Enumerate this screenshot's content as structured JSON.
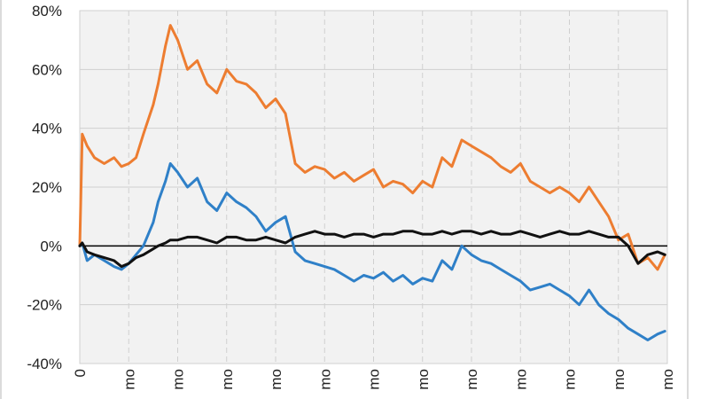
{
  "chart_data": {
    "type": "line",
    "title": "",
    "xlabel": "",
    "ylabel": "",
    "x_tick_labels": [
      "0",
      "mo",
      "mo",
      "mo",
      "mo",
      "mo",
      "mo",
      "mo",
      "mo",
      "mo",
      "mo",
      "mo",
      "mo"
    ],
    "x_range": [
      0,
      12
    ],
    "y_tick_labels": [
      "80%",
      "60%",
      "40%",
      "20%",
      "0%",
      "-20%",
      "-40%"
    ],
    "ylim": [
      -40,
      80
    ],
    "y_unit": "%",
    "grid": true,
    "legend": "none",
    "colors": {
      "background": "#ffffff",
      "plot_background": "#f2f2f2",
      "grid": "#d0d0d0",
      "zero_line": "#000000",
      "series_orange": "#ed7d31",
      "series_blue": "#2f80c8",
      "series_black": "#111111"
    },
    "series": [
      {
        "color": "#ed7d31",
        "x": [
          0,
          0.05,
          0.15,
          0.3,
          0.5,
          0.7,
          0.85,
          1.0,
          1.15,
          1.3,
          1.5,
          1.6,
          1.75,
          1.85,
          2.0,
          2.2,
          2.4,
          2.6,
          2.8,
          3.0,
          3.2,
          3.4,
          3.6,
          3.8,
          4.0,
          4.2,
          4.4,
          4.6,
          4.8,
          5.0,
          5.2,
          5.4,
          5.6,
          5.8,
          6.0,
          6.2,
          6.4,
          6.6,
          6.8,
          7.0,
          7.2,
          7.4,
          7.6,
          7.8,
          8.0,
          8.2,
          8.4,
          8.6,
          8.8,
          9.0,
          9.2,
          9.4,
          9.6,
          9.8,
          10.0,
          10.2,
          10.4,
          10.6,
          10.8,
          11.0,
          11.2,
          11.4,
          11.6,
          11.8,
          11.95
        ],
        "y": [
          0,
          38,
          34,
          30,
          28,
          30,
          27,
          28,
          30,
          38,
          48,
          55,
          68,
          75,
          70,
          60,
          63,
          55,
          52,
          60,
          56,
          55,
          52,
          47,
          50,
          45,
          28,
          25,
          27,
          26,
          23,
          25,
          22,
          24,
          26,
          20,
          22,
          21,
          18,
          22,
          20,
          30,
          27,
          36,
          34,
          32,
          30,
          27,
          25,
          28,
          22,
          20,
          18,
          20,
          18,
          15,
          20,
          15,
          10,
          2,
          4,
          -6,
          -4,
          -8,
          -3
        ]
      },
      {
        "color": "#2f80c8",
        "x": [
          0,
          0.05,
          0.15,
          0.3,
          0.5,
          0.7,
          0.85,
          1.0,
          1.15,
          1.3,
          1.5,
          1.6,
          1.75,
          1.85,
          2.0,
          2.2,
          2.4,
          2.6,
          2.8,
          3.0,
          3.2,
          3.4,
          3.6,
          3.8,
          4.0,
          4.2,
          4.4,
          4.6,
          4.8,
          5.0,
          5.2,
          5.4,
          5.6,
          5.8,
          6.0,
          6.2,
          6.4,
          6.6,
          6.8,
          7.0,
          7.2,
          7.4,
          7.6,
          7.8,
          8.0,
          8.2,
          8.4,
          8.6,
          8.8,
          9.0,
          9.2,
          9.4,
          9.6,
          9.8,
          10.0,
          10.2,
          10.4,
          10.6,
          10.8,
          11.0,
          11.2,
          11.4,
          11.6,
          11.8,
          11.95
        ],
        "y": [
          0,
          1,
          -5,
          -3,
          -5,
          -7,
          -8,
          -6,
          -3,
          0,
          8,
          15,
          22,
          28,
          25,
          20,
          23,
          15,
          12,
          18,
          15,
          13,
          10,
          5,
          8,
          10,
          -2,
          -5,
          -6,
          -7,
          -8,
          -10,
          -12,
          -10,
          -11,
          -9,
          -12,
          -10,
          -13,
          -11,
          -12,
          -5,
          -8,
          0,
          -3,
          -5,
          -6,
          -8,
          -10,
          -12,
          -15,
          -14,
          -13,
          -15,
          -17,
          -20,
          -15,
          -20,
          -23,
          -25,
          -28,
          -30,
          -32,
          -30,
          -29
        ]
      },
      {
        "color": "#111111",
        "x": [
          0,
          0.05,
          0.15,
          0.3,
          0.5,
          0.7,
          0.85,
          1.0,
          1.15,
          1.3,
          1.5,
          1.6,
          1.75,
          1.85,
          2.0,
          2.2,
          2.4,
          2.6,
          2.8,
          3.0,
          3.2,
          3.4,
          3.6,
          3.8,
          4.0,
          4.2,
          4.4,
          4.6,
          4.8,
          5.0,
          5.2,
          5.4,
          5.6,
          5.8,
          6.0,
          6.2,
          6.4,
          6.6,
          6.8,
          7.0,
          7.2,
          7.4,
          7.6,
          7.8,
          8.0,
          8.2,
          8.4,
          8.6,
          8.8,
          9.0,
          9.2,
          9.4,
          9.6,
          9.8,
          10.0,
          10.2,
          10.4,
          10.6,
          10.8,
          11.0,
          11.2,
          11.4,
          11.6,
          11.8,
          11.95
        ],
        "y": [
          0,
          1,
          -2,
          -3,
          -4,
          -5,
          -7,
          -6,
          -4,
          -3,
          -1,
          0,
          1,
          2,
          2,
          3,
          3,
          2,
          1,
          3,
          3,
          2,
          2,
          3,
          2,
          1,
          3,
          4,
          5,
          4,
          4,
          3,
          4,
          4,
          3,
          4,
          4,
          5,
          5,
          4,
          4,
          5,
          4,
          5,
          5,
          4,
          5,
          4,
          4,
          5,
          4,
          3,
          4,
          5,
          4,
          4,
          5,
          4,
          3,
          3,
          0,
          -6,
          -3,
          -2,
          -3
        ]
      }
    ]
  }
}
